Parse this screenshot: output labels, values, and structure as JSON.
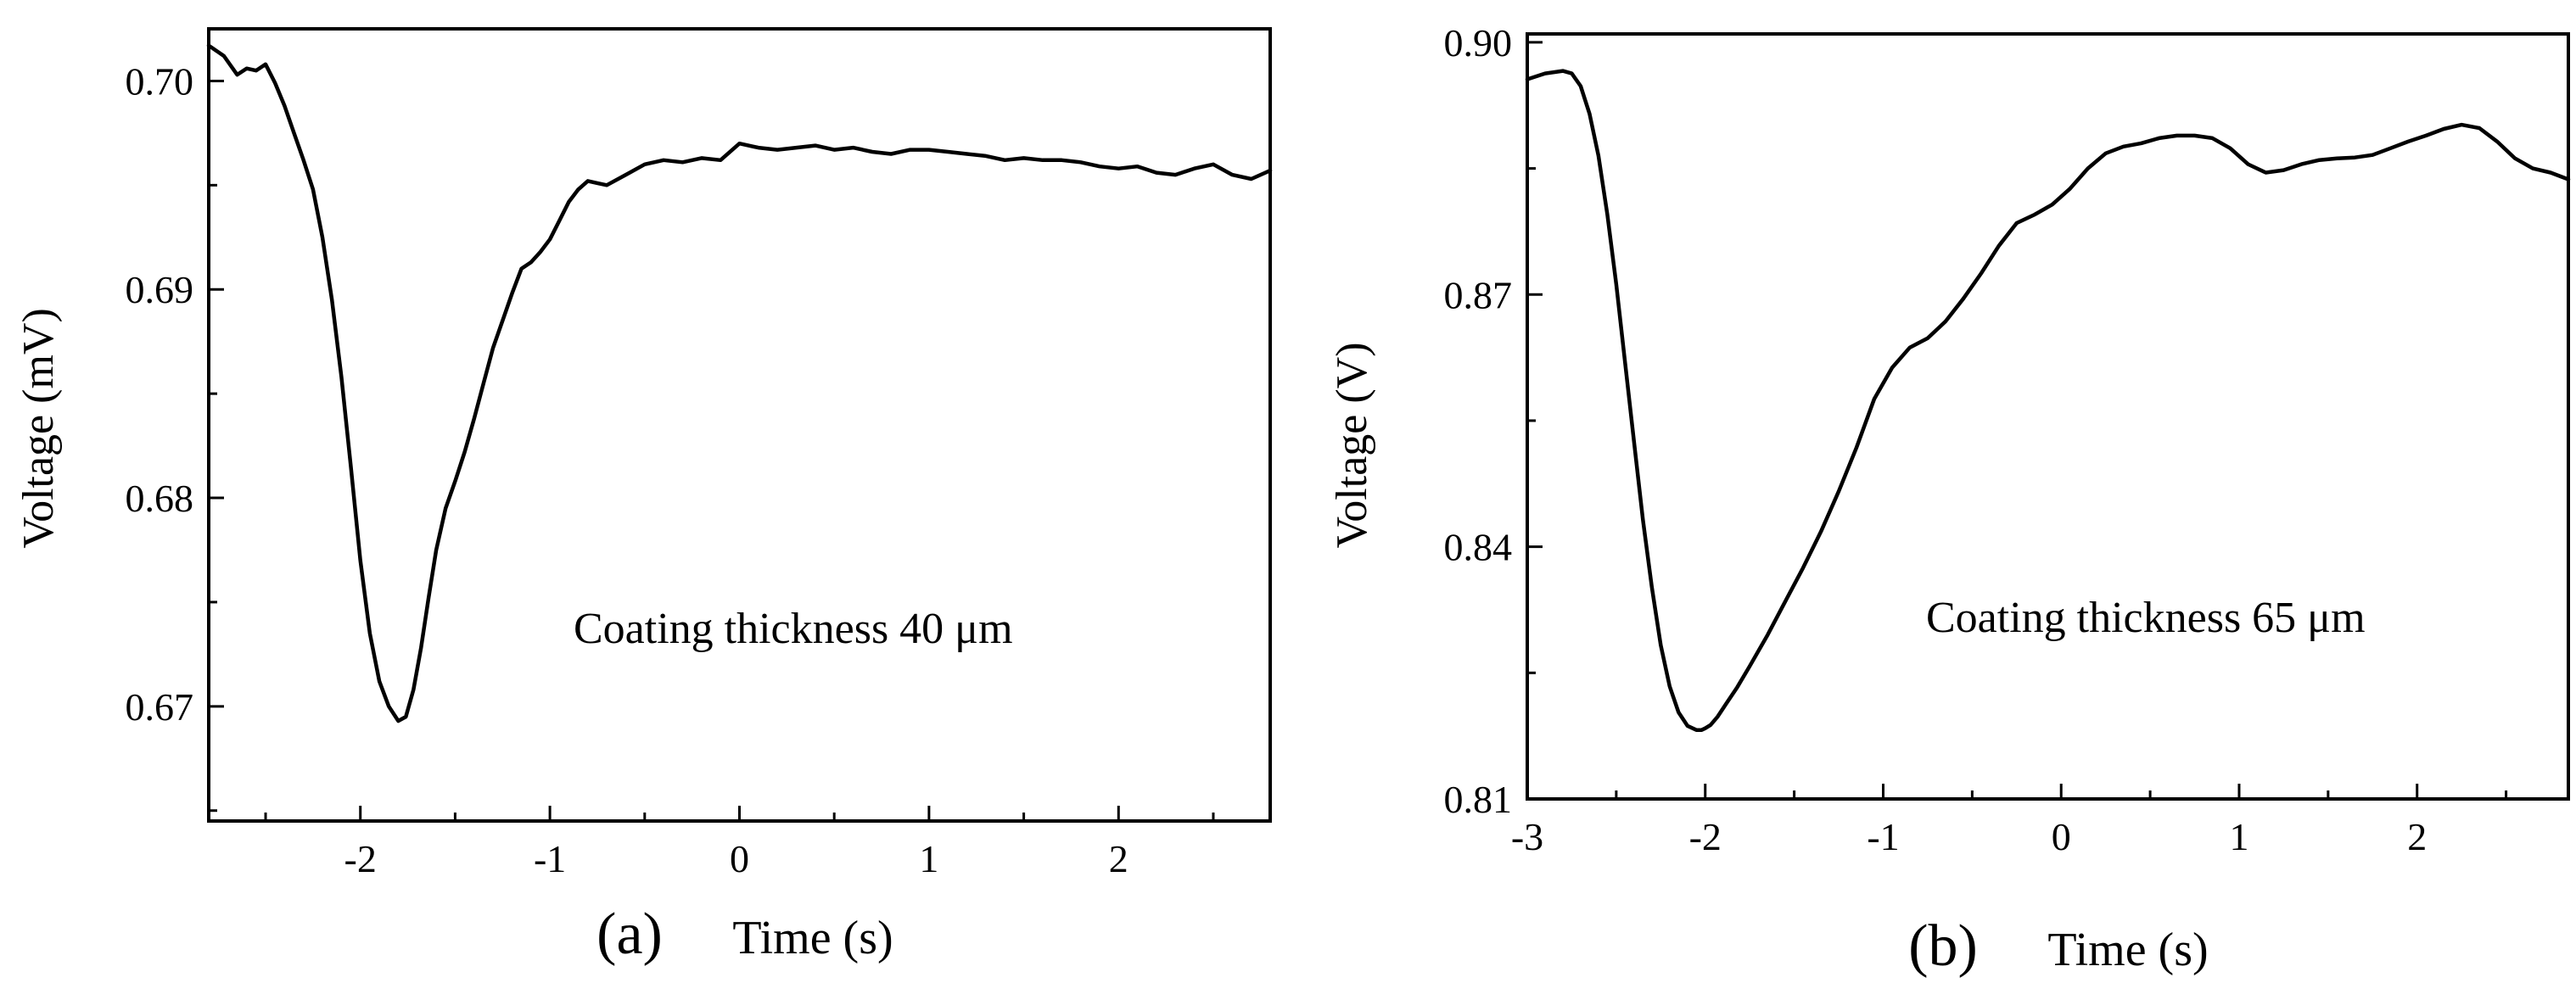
{
  "chart_data": [
    {
      "type": "line",
      "panel_label": "(a)",
      "title": "",
      "xlabel": "Time (s)",
      "ylabel": "Voltage (mV)",
      "annotation": "Coating thickness 40 μm",
      "xlim": [
        -2.8,
        2.8
      ],
      "ylim": [
        0.6645,
        0.7025
      ],
      "xticks": [
        -2,
        -1,
        0,
        1,
        2
      ],
      "xtick_labels": [
        "-2",
        "-1",
        "0",
        "1",
        "2"
      ],
      "yticks": [
        0.67,
        0.68,
        0.69,
        0.7
      ],
      "ytick_labels": [
        "0.67",
        "0.68",
        "0.69",
        "0.70"
      ],
      "grid": false,
      "series": [
        {
          "name": "Coating thickness 40 μm",
          "x": [
            -2.8,
            -2.72,
            -2.65,
            -2.6,
            -2.55,
            -2.5,
            -2.45,
            -2.4,
            -2.35,
            -2.3,
            -2.25,
            -2.2,
            -2.15,
            -2.1,
            -2.05,
            -2.0,
            -1.95,
            -1.9,
            -1.85,
            -1.8,
            -1.76,
            -1.72,
            -1.68,
            -1.64,
            -1.6,
            -1.55,
            -1.5,
            -1.45,
            -1.4,
            -1.35,
            -1.3,
            -1.25,
            -1.2,
            -1.15,
            -1.1,
            -1.05,
            -1.0,
            -0.95,
            -0.9,
            -0.85,
            -0.8,
            -0.75,
            -0.7,
            -0.6,
            -0.5,
            -0.4,
            -0.3,
            -0.2,
            -0.1,
            0.0,
            0.1,
            0.2,
            0.3,
            0.4,
            0.5,
            0.6,
            0.7,
            0.8,
            0.9,
            1.0,
            1.1,
            1.2,
            1.3,
            1.4,
            1.5,
            1.6,
            1.7,
            1.8,
            1.9,
            2.0,
            2.1,
            2.2,
            2.3,
            2.4,
            2.5,
            2.6,
            2.7,
            2.8
          ],
          "y": [
            0.7017,
            0.7012,
            0.7003,
            0.7006,
            0.7005,
            0.7008,
            0.6999,
            0.6988,
            0.6975,
            0.6962,
            0.6948,
            0.6925,
            0.6895,
            0.6858,
            0.6815,
            0.677,
            0.6735,
            0.6712,
            0.67,
            0.6693,
            0.6695,
            0.6708,
            0.6728,
            0.6752,
            0.6775,
            0.6795,
            0.6808,
            0.6822,
            0.6838,
            0.6855,
            0.6872,
            0.6885,
            0.6898,
            0.691,
            0.6913,
            0.6918,
            0.6924,
            0.6933,
            0.6942,
            0.6948,
            0.6952,
            0.6951,
            0.695,
            0.6955,
            0.696,
            0.6962,
            0.6961,
            0.6963,
            0.6962,
            0.697,
            0.6968,
            0.6967,
            0.6968,
            0.6969,
            0.6967,
            0.6968,
            0.6966,
            0.6965,
            0.6967,
            0.6967,
            0.6966,
            0.6965,
            0.6964,
            0.6962,
            0.6963,
            0.6962,
            0.6962,
            0.6961,
            0.6959,
            0.6958,
            0.6959,
            0.6956,
            0.6955,
            0.6958,
            0.696,
            0.6955,
            0.6953,
            0.6957
          ]
        }
      ]
    },
    {
      "type": "line",
      "panel_label": "(b)",
      "title": "",
      "xlabel": "Time (s)",
      "ylabel": "Voltage (V)",
      "annotation": "Coating thickness 65 μm",
      "xlim": [
        -3.0,
        2.85
      ],
      "ylim": [
        0.81,
        0.901
      ],
      "xticks": [
        -3,
        -2,
        -1,
        0,
        1,
        2
      ],
      "xtick_labels": [
        "-3",
        "-2",
        "-1",
        "0",
        "1",
        "2"
      ],
      "yticks": [
        0.81,
        0.84,
        0.87,
        0.9
      ],
      "ytick_labels": [
        "0.81",
        "0.84",
        "0.87",
        "0.90"
      ],
      "grid": false,
      "series": [
        {
          "name": "Coating thickness 65 μm",
          "x": [
            -3.0,
            -2.9,
            -2.8,
            -2.75,
            -2.7,
            -2.65,
            -2.6,
            -2.55,
            -2.5,
            -2.45,
            -2.4,
            -2.35,
            -2.3,
            -2.25,
            -2.2,
            -2.15,
            -2.1,
            -2.05,
            -2.02,
            -2.0,
            -1.97,
            -1.93,
            -1.88,
            -1.82,
            -1.75,
            -1.65,
            -1.55,
            -1.45,
            -1.35,
            -1.25,
            -1.15,
            -1.05,
            -0.95,
            -0.85,
            -0.75,
            -0.65,
            -0.55,
            -0.45,
            -0.35,
            -0.25,
            -0.15,
            -0.05,
            0.05,
            0.15,
            0.25,
            0.35,
            0.45,
            0.55,
            0.65,
            0.75,
            0.85,
            0.95,
            1.05,
            1.15,
            1.25,
            1.35,
            1.45,
            1.55,
            1.65,
            1.75,
            1.85,
            1.95,
            2.05,
            2.15,
            2.25,
            2.35,
            2.45,
            2.55,
            2.65,
            2.75,
            2.85
          ],
          "y": [
            0.8956,
            0.8963,
            0.8966,
            0.8963,
            0.8948,
            0.8915,
            0.8865,
            0.8795,
            0.8712,
            0.8618,
            0.8525,
            0.8432,
            0.8352,
            0.8283,
            0.8234,
            0.8203,
            0.8187,
            0.8182,
            0.8182,
            0.8184,
            0.8188,
            0.8198,
            0.8214,
            0.8233,
            0.8258,
            0.8295,
            0.8335,
            0.8375,
            0.8418,
            0.8466,
            0.8518,
            0.8576,
            0.8613,
            0.8637,
            0.8648,
            0.8668,
            0.8695,
            0.8725,
            0.8758,
            0.8785,
            0.8795,
            0.8807,
            0.8826,
            0.885,
            0.8868,
            0.8876,
            0.888,
            0.8886,
            0.8889,
            0.8889,
            0.8886,
            0.8874,
            0.8855,
            0.8845,
            0.8848,
            0.8855,
            0.886,
            0.8862,
            0.8863,
            0.8866,
            0.8874,
            0.8882,
            0.8889,
            0.8897,
            0.8902,
            0.8898,
            0.8882,
            0.8862,
            0.885,
            0.8845,
            0.8837
          ]
        }
      ]
    }
  ]
}
